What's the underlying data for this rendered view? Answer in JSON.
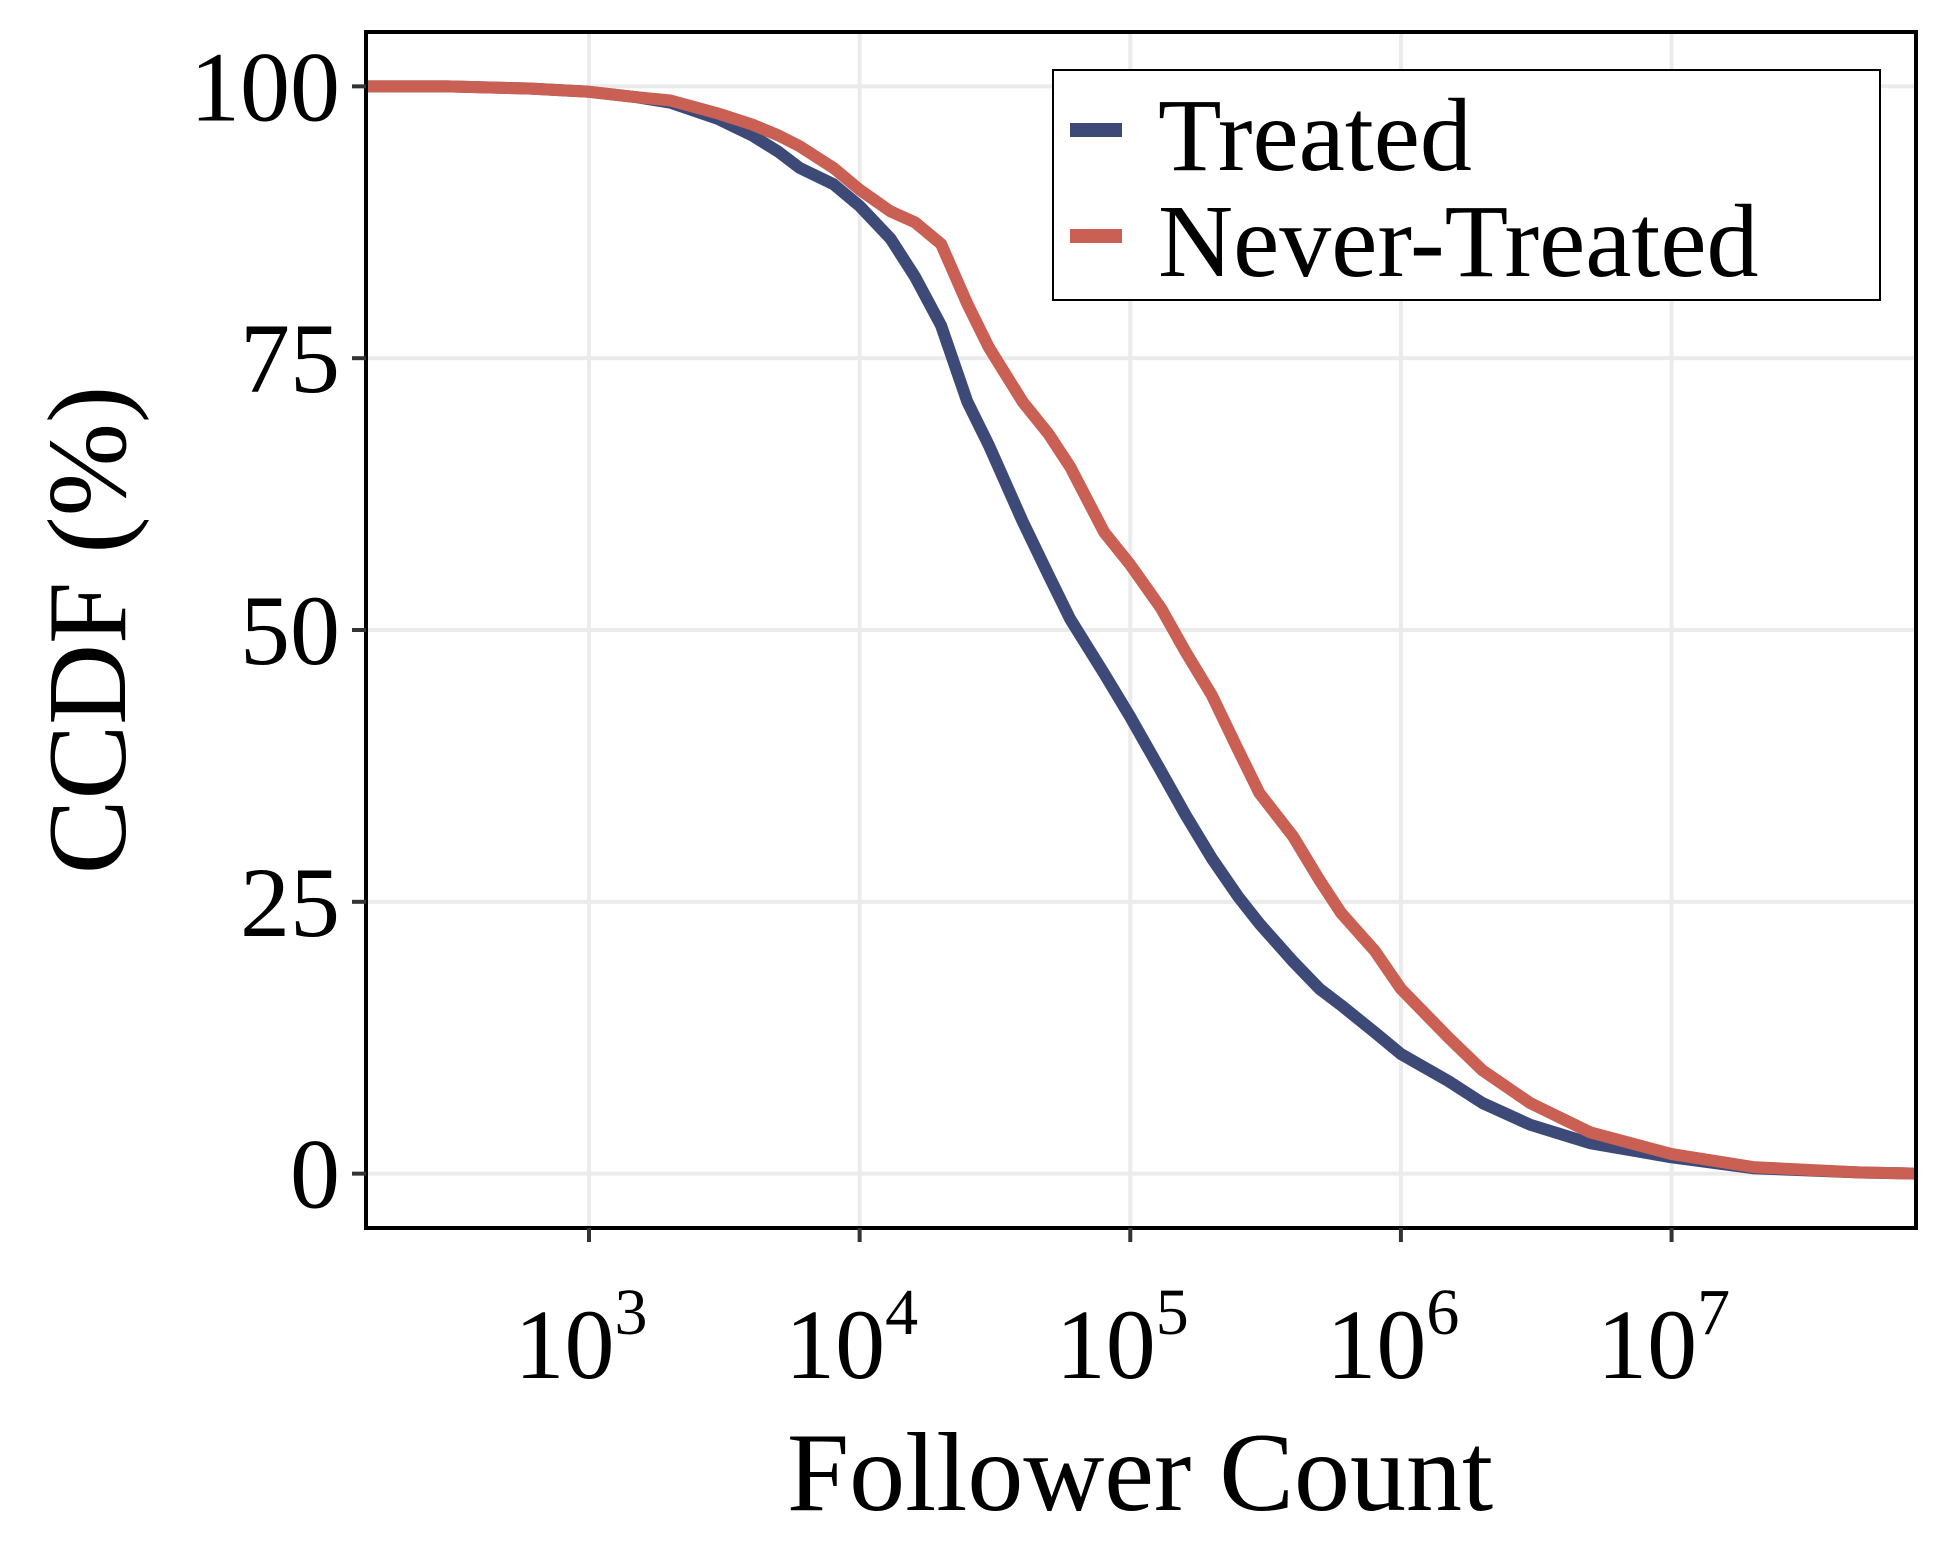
{
  "chart_data": {
    "type": "line",
    "title": "",
    "xlabel": "Follower Count",
    "ylabel": "CCDF (%)",
    "xscale": "log",
    "xlim": [
      150,
      80000000
    ],
    "ylim": [
      -5,
      105
    ],
    "yticks": [
      0,
      25,
      50,
      75,
      100
    ],
    "ytick_labels": [
      "0",
      "25",
      "50",
      "75",
      "100"
    ],
    "xticks": [
      {
        "value": 1000,
        "base": "10",
        "exp": "3"
      },
      {
        "value": 10000,
        "base": "10",
        "exp": "4"
      },
      {
        "value": 100000,
        "base": "10",
        "exp": "5"
      },
      {
        "value": 1000000,
        "base": "10",
        "exp": "6"
      },
      {
        "value": 10000000,
        "base": "10",
        "exp": "7"
      }
    ],
    "grid": true,
    "legend_position": "top-right",
    "series": [
      {
        "name": "Treated",
        "color": "#3d4a78",
        "x": [
          150,
          300,
          600,
          1000,
          1500,
          2000,
          3000,
          4000,
          5000,
          6000,
          8000,
          10000,
          13000,
          16000,
          20000,
          25000,
          30000,
          40000,
          50000,
          60000,
          80000,
          100000,
          130000,
          160000,
          200000,
          250000,
          300000,
          400000,
          500000,
          600000,
          800000,
          1000000,
          1500000,
          2000000,
          3000000,
          5000000,
          10000000,
          20000000,
          50000000,
          80000000
        ],
        "values": [
          100,
          100,
          99.8,
          99.5,
          99,
          98.5,
          97,
          95.5,
          94,
          92.5,
          91,
          89,
          86,
          82.5,
          78,
          71,
          67,
          60,
          55,
          51,
          46,
          42,
          37,
          33,
          29,
          25.5,
          23,
          19.5,
          17,
          15.5,
          13,
          11,
          8.5,
          6.5,
          4.5,
          2.8,
          1.5,
          0.5,
          0.1,
          0
        ]
      },
      {
        "name": "Never-Treated",
        "color": "#c96053",
        "x": [
          150,
          300,
          600,
          1000,
          1500,
          2000,
          3000,
          4000,
          5000,
          6000,
          8000,
          10000,
          13000,
          16000,
          20000,
          25000,
          30000,
          40000,
          50000,
          60000,
          80000,
          100000,
          130000,
          160000,
          200000,
          250000,
          300000,
          400000,
          500000,
          600000,
          800000,
          1000000,
          1500000,
          2000000,
          3000000,
          5000000,
          10000000,
          20000000,
          50000000,
          80000000
        ],
        "values": [
          100,
          100,
          99.8,
          99.5,
          99,
          98.7,
          97.5,
          96.5,
          95.5,
          94.5,
          92.5,
          90.5,
          88.5,
          87.5,
          85.5,
          80,
          76,
          71,
          68,
          65,
          59,
          56,
          52,
          48,
          44,
          39,
          35,
          31,
          27,
          24,
          20.5,
          17,
          12.5,
          9.5,
          6.5,
          3.8,
          1.8,
          0.6,
          0.1,
          0
        ]
      }
    ]
  }
}
